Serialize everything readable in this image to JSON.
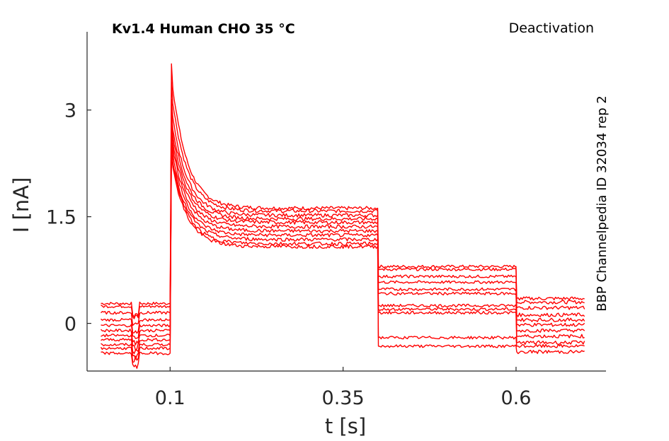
{
  "figure": {
    "title": "Kv1.4  Human  CHO  35 °C",
    "protocol": "Deactivation",
    "source": "BBP Channelpedia ID 32034 rep 2"
  },
  "chart_data": {
    "type": "line",
    "xlabel": "t [s]",
    "ylabel": "I [nA]",
    "xlim": [
      -0.02,
      0.73
    ],
    "ylim": [
      -0.67,
      4.1
    ],
    "xticks": [
      0.1,
      0.35,
      0.6
    ],
    "xtick_labels": [
      "0.1",
      "0.35",
      "0.6"
    ],
    "yticks": [
      0,
      1.5,
      3
    ],
    "ytick_labels": [
      "0",
      "1.5",
      "3"
    ],
    "grid": false,
    "legend": "none",
    "line_color": "#ff0000",
    "protocol_steps_s": {
      "baseline_end": 0.1,
      "test_end": 0.4,
      "tail_end": 0.6,
      "record_end": 0.7,
      "artifact_window": [
        0.045,
        0.055
      ]
    },
    "traces": [
      {
        "baseline": 0.28,
        "peak": 3.65,
        "test_steady": 1.62,
        "tail": 0.8,
        "final": 0.3
      },
      {
        "baseline": 0.24,
        "peak": 3.4,
        "test_steady": 1.58,
        "tail": 0.76,
        "final": 0.35
      },
      {
        "baseline": 0.15,
        "peak": 3.15,
        "test_steady": 1.52,
        "tail": 0.66,
        "final": 0.22
      },
      {
        "baseline": 0.05,
        "peak": 3.0,
        "test_steady": 1.47,
        "tail": 0.58,
        "final": 0.12
      },
      {
        "baseline": -0.03,
        "peak": 2.88,
        "test_steady": 1.42,
        "tail": 0.48,
        "final": 0.05
      },
      {
        "baseline": -0.1,
        "peak": 2.78,
        "test_steady": 1.36,
        "tail": 0.42,
        "final": -0.02
      },
      {
        "baseline": -0.17,
        "peak": 2.68,
        "test_steady": 1.3,
        "tail": 0.25,
        "final": -0.1
      },
      {
        "baseline": -0.23,
        "peak": 2.58,
        "test_steady": 1.24,
        "tail": 0.2,
        "final": -0.18
      },
      {
        "baseline": -0.3,
        "peak": 2.5,
        "test_steady": 1.18,
        "tail": 0.15,
        "final": -0.27
      },
      {
        "baseline": -0.35,
        "peak": 2.45,
        "test_steady": 1.12,
        "tail": -0.2,
        "final": -0.32
      },
      {
        "baseline": -0.42,
        "peak": 2.4,
        "test_steady": 1.08,
        "tail": -0.32,
        "final": -0.4
      }
    ]
  }
}
